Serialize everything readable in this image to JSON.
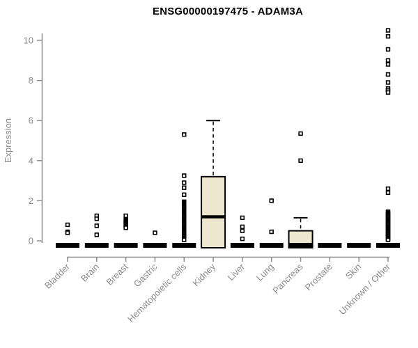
{
  "chart_data": {
    "type": "box",
    "title": "ENSG00000197475 - ADAM3A",
    "xlabel": "",
    "ylabel": "Expression",
    "ylim": [
      0,
      10
    ],
    "yticks": [
      0,
      2,
      4,
      6,
      8,
      10
    ],
    "grid": false,
    "legend": "none",
    "outlier_marker": "open-square",
    "colors": {
      "box_fill": "#EDE7CF",
      "box_stroke": "#000000",
      "axis": "#8C8C8C",
      "title": "#000000",
      "background": "#FFFFFF"
    },
    "categories": [
      "Bladder",
      "Brain",
      "Breast",
      "Gastric",
      "Hematopoietic cells",
      "Kidney",
      "Liver",
      "Lung",
      "Pancreas",
      "Prostate",
      "Skin",
      "Unknown / Other"
    ],
    "boxes": [
      {
        "category": "Bladder",
        "q1": 0,
        "median": 0,
        "q3": 0,
        "whisker_low": 0,
        "whisker_high": 0,
        "outliers": [
          0.8,
          0.45,
          0.4
        ]
      },
      {
        "category": "Brain",
        "q1": 0,
        "median": 0,
        "q3": 0,
        "whisker_low": 0,
        "whisker_high": 0,
        "outliers": [
          1.25,
          1.1,
          0.75,
          0.3
        ]
      },
      {
        "category": "Breast",
        "q1": 0,
        "median": 0,
        "q3": 0,
        "whisker_low": 0,
        "whisker_high": 0,
        "outliers": [
          1.25,
          1.05,
          1.0,
          0.95,
          0.9,
          0.85,
          0.8,
          0.75,
          0.7,
          0.65
        ]
      },
      {
        "category": "Gastric",
        "q1": 0,
        "median": 0,
        "q3": 0,
        "whisker_low": 0,
        "whisker_high": 0,
        "outliers": [
          0.4
        ]
      },
      {
        "category": "Hematopoietic cells",
        "q1": 0,
        "median": 0,
        "q3": 0,
        "whisker_low": 0,
        "whisker_high": 0,
        "outliers": [
          5.3,
          3.25,
          2.9,
          2.65,
          2.3,
          1.95,
          1.9,
          1.85,
          1.8,
          1.75,
          1.7,
          1.65,
          1.6,
          1.55,
          1.5,
          1.45,
          1.4,
          1.35,
          1.3,
          1.25,
          1.2,
          1.15,
          1.1,
          1.05,
          1.0,
          0.95,
          0.9,
          0.85,
          0.8,
          0.75,
          0.7,
          0.65,
          0.6,
          0.55,
          0.5,
          0.45,
          0.4,
          0.35,
          0.3,
          0.25,
          0.2,
          0.15,
          0.1,
          0.05
        ]
      },
      {
        "category": "Kidney",
        "q1": 0,
        "median": 1.2,
        "q3": 3.2,
        "whisker_low": 0,
        "whisker_high": 6.0,
        "outliers": []
      },
      {
        "category": "Liver",
        "q1": 0,
        "median": 0,
        "q3": 0,
        "whisker_low": 0,
        "whisker_high": 0,
        "outliers": [
          1.15,
          0.7,
          0.5,
          0.1
        ]
      },
      {
        "category": "Lung",
        "q1": 0,
        "median": 0,
        "q3": 0,
        "whisker_low": 0,
        "whisker_high": 0,
        "outliers": [
          2.0,
          0.45
        ]
      },
      {
        "category": "Pancreas",
        "q1": 0,
        "median": 0,
        "q3": 0.5,
        "whisker_low": 0,
        "whisker_high": 1.15,
        "outliers": [
          5.35,
          4.0
        ]
      },
      {
        "category": "Prostate",
        "q1": 0,
        "median": 0,
        "q3": 0,
        "whisker_low": 0,
        "whisker_high": 0,
        "outliers": []
      },
      {
        "category": "Skin",
        "q1": 0,
        "median": 0,
        "q3": 0,
        "whisker_low": 0,
        "whisker_high": 0,
        "outliers": []
      },
      {
        "category": "Unknown / Other",
        "q1": 0,
        "median": 0,
        "q3": 0,
        "whisker_low": 0,
        "whisker_high": 0,
        "outliers": [
          10.5,
          10.2,
          9.55,
          9.0,
          8.8,
          8.3,
          7.9,
          7.6,
          7.5,
          7.4,
          2.6,
          2.4,
          1.45,
          1.4,
          1.35,
          1.3,
          1.25,
          1.2,
          1.15,
          1.1,
          1.05,
          1.0,
          0.95,
          0.9,
          0.85,
          0.8,
          0.75,
          0.7,
          0.65,
          0.6,
          0.55,
          0.5,
          0.45,
          0.4,
          0.35,
          0.3,
          0.25,
          0.2,
          0.15,
          0.1,
          0.05
        ]
      }
    ]
  }
}
